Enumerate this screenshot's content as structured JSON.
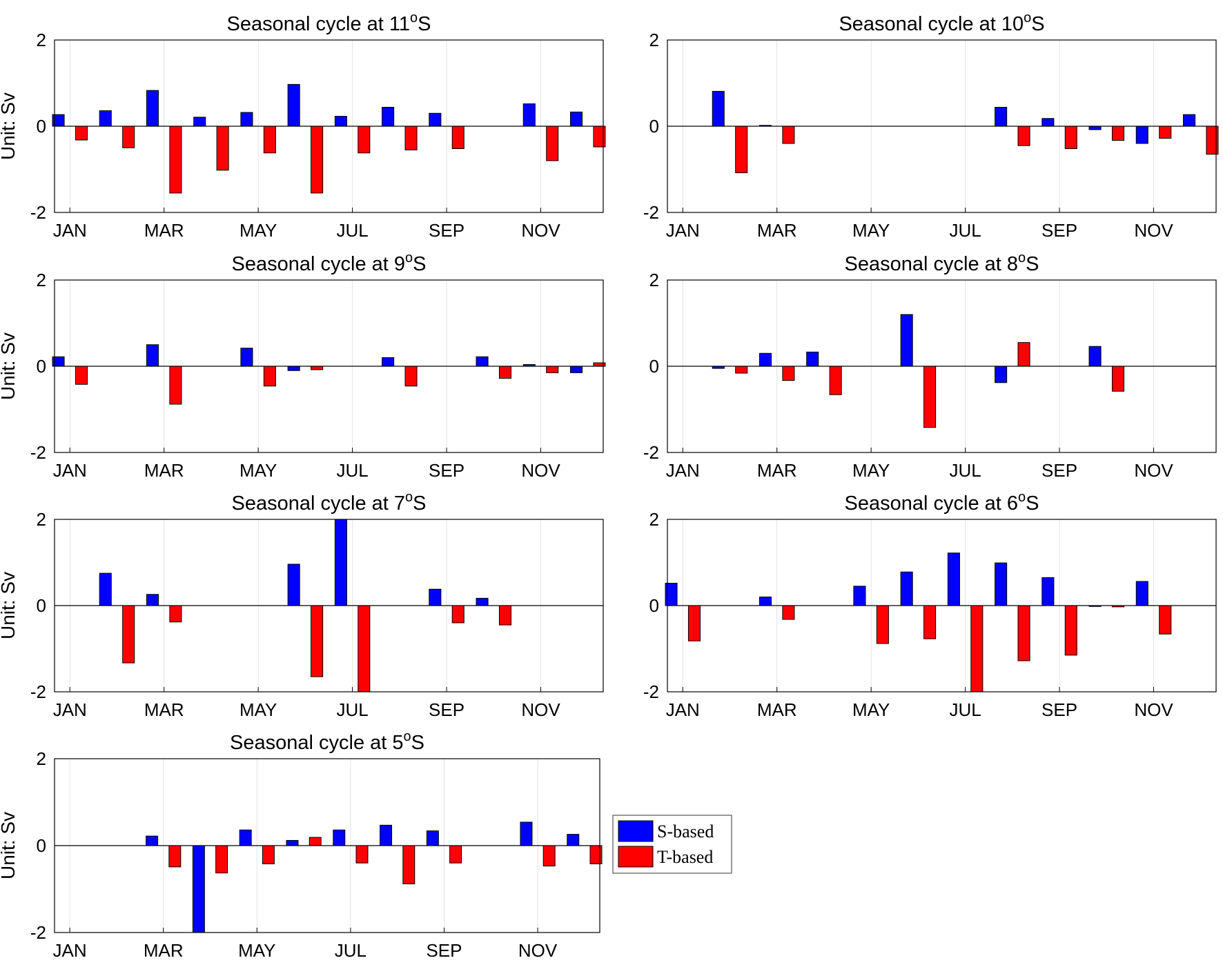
{
  "figure": {
    "legend": [
      {
        "label": "S-based",
        "color": "#0000ff"
      },
      {
        "label": "T-based",
        "color": "#ff0000"
      }
    ]
  },
  "chart_data": [
    {
      "type": "bar",
      "title": "Seasonal cycle at 11",
      "title_sup": "o",
      "title_suffix": "S",
      "ylabel": "Unit: Sv",
      "ylim": [
        -2,
        2
      ],
      "yticks": [
        -2,
        0,
        2
      ],
      "categories": [
        "JAN",
        "FEB",
        "MAR",
        "APR",
        "MAY",
        "JUN",
        "JUL",
        "AUG",
        "SEP",
        "OCT",
        "NOV",
        "DEC"
      ],
      "xtick_labels": [
        "JAN",
        "MAR",
        "MAY",
        "JUL",
        "SEP",
        "NOV"
      ],
      "grid": true,
      "series": [
        {
          "name": "S-based",
          "color": "#0000ff",
          "values": [
            0.27,
            0.36,
            0.83,
            0.21,
            0.32,
            0.97,
            0.23,
            0.44,
            0.3,
            null,
            0.52,
            0.33
          ]
        },
        {
          "name": "T-based",
          "color": "#ff0000",
          "values": [
            -0.32,
            -0.5,
            -1.55,
            -1.02,
            -0.62,
            -1.55,
            -0.62,
            -0.55,
            -0.52,
            null,
            -0.8,
            -0.48
          ]
        }
      ]
    },
    {
      "type": "bar",
      "title": "Seasonal cycle at 10",
      "title_sup": "o",
      "title_suffix": "S",
      "ylabel": "",
      "ylim": [
        -2,
        2
      ],
      "yticks": [
        -2,
        0,
        2
      ],
      "categories": [
        "JAN",
        "FEB",
        "MAR",
        "APR",
        "MAY",
        "JUN",
        "JUL",
        "AUG",
        "SEP",
        "OCT",
        "NOV",
        "DEC"
      ],
      "xtick_labels": [
        "JAN",
        "MAR",
        "MAY",
        "JUL",
        "SEP",
        "NOV"
      ],
      "grid": true,
      "series": [
        {
          "name": "S-based",
          "color": "#0000ff",
          "values": [
            null,
            0.81,
            0.02,
            null,
            null,
            null,
            null,
            0.44,
            0.18,
            -0.08,
            -0.4,
            0.27
          ]
        },
        {
          "name": "T-based",
          "color": "#ff0000",
          "values": [
            null,
            -1.08,
            -0.4,
            null,
            null,
            null,
            null,
            -0.45,
            -0.52,
            -0.33,
            -0.28,
            -0.65
          ]
        }
      ]
    },
    {
      "type": "bar",
      "title": "Seasonal cycle at 9",
      "title_sup": "o",
      "title_suffix": "S",
      "ylabel": "Unit: Sv",
      "ylim": [
        -2,
        2
      ],
      "yticks": [
        -2,
        0,
        2
      ],
      "categories": [
        "JAN",
        "FEB",
        "MAR",
        "APR",
        "MAY",
        "JUN",
        "JUL",
        "AUG",
        "SEP",
        "OCT",
        "NOV",
        "DEC"
      ],
      "xtick_labels": [
        "JAN",
        "MAR",
        "MAY",
        "JUL",
        "SEP",
        "NOV"
      ],
      "grid": true,
      "series": [
        {
          "name": "S-based",
          "color": "#0000ff",
          "values": [
            0.22,
            null,
            0.5,
            null,
            0.42,
            -0.1,
            null,
            0.2,
            null,
            0.22,
            0.04,
            -0.15
          ]
        },
        {
          "name": "T-based",
          "color": "#ff0000",
          "values": [
            -0.42,
            null,
            -0.88,
            null,
            -0.46,
            -0.08,
            null,
            -0.46,
            null,
            -0.28,
            -0.15,
            0.08
          ]
        }
      ]
    },
    {
      "type": "bar",
      "title": "Seasonal cycle at 8",
      "title_sup": "o",
      "title_suffix": "S",
      "ylabel": "",
      "ylim": [
        -2,
        2
      ],
      "yticks": [
        -2,
        0,
        2
      ],
      "categories": [
        "JAN",
        "FEB",
        "MAR",
        "APR",
        "MAY",
        "JUN",
        "JUL",
        "AUG",
        "SEP",
        "OCT",
        "NOV",
        "DEC"
      ],
      "xtick_labels": [
        "JAN",
        "MAR",
        "MAY",
        "JUL",
        "SEP",
        "NOV"
      ],
      "grid": true,
      "series": [
        {
          "name": "S-based",
          "color": "#0000ff",
          "values": [
            null,
            -0.05,
            0.3,
            0.33,
            null,
            1.2,
            null,
            -0.38,
            null,
            0.46,
            null,
            null
          ]
        },
        {
          "name": "T-based",
          "color": "#ff0000",
          "values": [
            null,
            -0.16,
            -0.33,
            -0.66,
            null,
            -1.42,
            null,
            0.55,
            null,
            -0.58,
            null,
            null
          ]
        }
      ]
    },
    {
      "type": "bar",
      "title": "Seasonal cycle at 7",
      "title_sup": "o",
      "title_suffix": "S",
      "ylabel": "Unit: Sv",
      "ylim": [
        -2,
        2
      ],
      "yticks": [
        -2,
        0,
        2
      ],
      "categories": [
        "JAN",
        "FEB",
        "MAR",
        "APR",
        "MAY",
        "JUN",
        "JUL",
        "AUG",
        "SEP",
        "OCT",
        "NOV",
        "DEC"
      ],
      "xtick_labels": [
        "JAN",
        "MAR",
        "MAY",
        "JUL",
        "SEP",
        "NOV"
      ],
      "grid": true,
      "series": [
        {
          "name": "S-based",
          "color": "#0000ff",
          "values": [
            null,
            0.75,
            0.26,
            null,
            null,
            0.96,
            2.0,
            null,
            0.38,
            0.17,
            null,
            null
          ]
        },
        {
          "name": "T-based",
          "color": "#ff0000",
          "values": [
            null,
            -1.33,
            -0.38,
            null,
            null,
            -1.65,
            -2.0,
            null,
            -0.4,
            -0.45,
            null,
            null
          ]
        }
      ]
    },
    {
      "type": "bar",
      "title": "Seasonal cycle at 6",
      "title_sup": "o",
      "title_suffix": "S",
      "ylabel": "",
      "ylim": [
        -2,
        2
      ],
      "yticks": [
        -2,
        0,
        2
      ],
      "categories": [
        "JAN",
        "FEB",
        "MAR",
        "APR",
        "MAY",
        "JUN",
        "JUL",
        "AUG",
        "SEP",
        "OCT",
        "NOV",
        "DEC"
      ],
      "xtick_labels": [
        "JAN",
        "MAR",
        "MAY",
        "JUL",
        "SEP",
        "NOV"
      ],
      "grid": true,
      "series": [
        {
          "name": "S-based",
          "color": "#0000ff",
          "values": [
            0.52,
            null,
            0.2,
            null,
            0.45,
            0.78,
            1.22,
            0.99,
            0.65,
            -0.02,
            0.56,
            null
          ]
        },
        {
          "name": "T-based",
          "color": "#ff0000",
          "values": [
            -0.82,
            null,
            -0.32,
            null,
            -0.88,
            -0.77,
            -2.0,
            -1.28,
            -1.15,
            -0.03,
            -0.66,
            null
          ]
        }
      ]
    },
    {
      "type": "bar",
      "title": "Seasonal cycle at 5",
      "title_sup": "o",
      "title_suffix": "S",
      "ylabel": "Unit: Sv",
      "ylim": [
        -2,
        2
      ],
      "yticks": [
        -2,
        0,
        2
      ],
      "categories": [
        "JAN",
        "FEB",
        "MAR",
        "APR",
        "MAY",
        "JUN",
        "JUL",
        "AUG",
        "SEP",
        "OCT",
        "NOV",
        "DEC"
      ],
      "xtick_labels": [
        "JAN",
        "MAR",
        "MAY",
        "JUL",
        "SEP",
        "NOV"
      ],
      "grid": true,
      "series": [
        {
          "name": "S-based",
          "color": "#0000ff",
          "values": [
            null,
            null,
            0.22,
            -2.0,
            0.36,
            0.12,
            0.36,
            0.47,
            0.34,
            null,
            0.54,
            0.26
          ]
        },
        {
          "name": "T-based",
          "color": "#ff0000",
          "values": [
            null,
            null,
            -0.49,
            -0.63,
            -0.42,
            0.19,
            -0.4,
            -0.88,
            -0.4,
            null,
            -0.47,
            -0.42
          ]
        }
      ]
    }
  ]
}
